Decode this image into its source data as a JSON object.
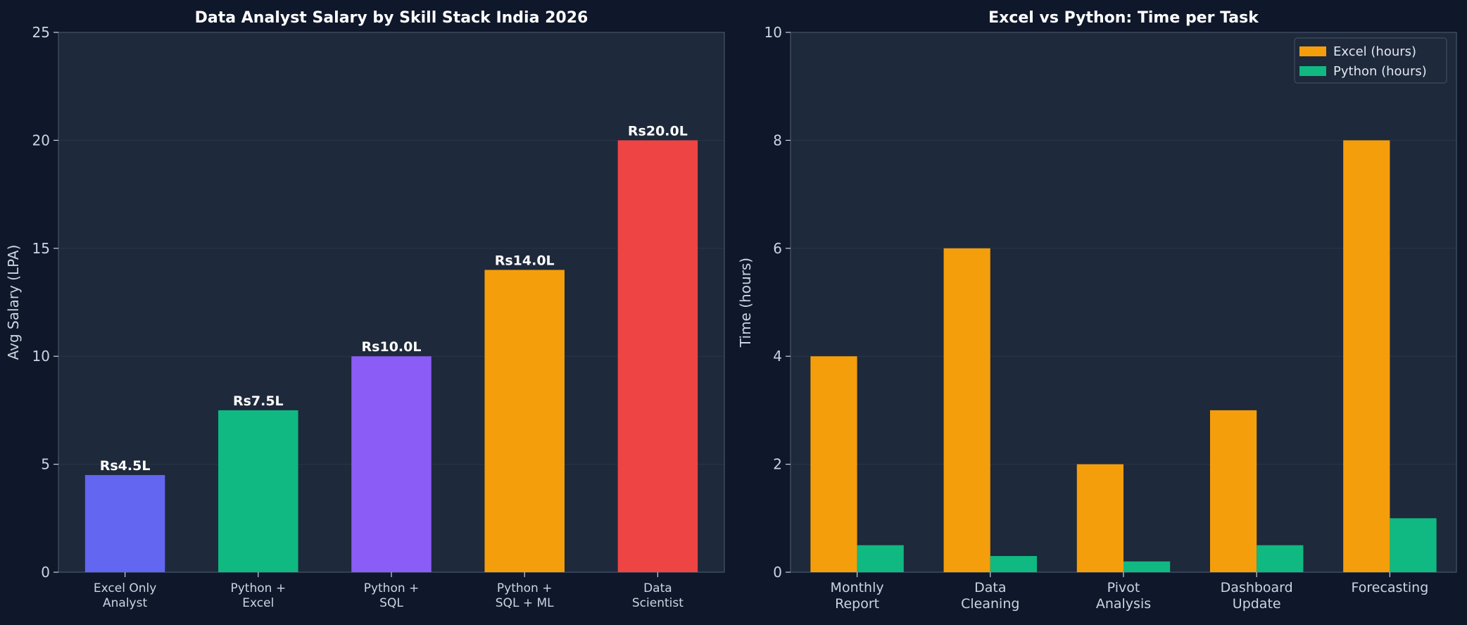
{
  "theme": {
    "figure_bg": "#0f172a",
    "axes_bg": "#1e293b",
    "grid": "#334155",
    "spine": "#475569",
    "tick_text": "#cbd5e1",
    "title_text": "#ffffff",
    "label_text": "#ffffff"
  },
  "chart_data": [
    {
      "type": "bar",
      "title": "Data Analyst Salary by Skill Stack India 2026",
      "xlabel": "",
      "ylabel": "Avg Salary (LPA)",
      "ylim": [
        0,
        25
      ],
      "yticks": [
        "0",
        "5",
        "10",
        "15",
        "20",
        "25"
      ],
      "ytick_values": [
        0,
        5,
        10,
        15,
        20,
        25
      ],
      "grid": true,
      "categories": [
        [
          "Excel Only",
          "Analyst"
        ],
        [
          "Python +",
          "Excel"
        ],
        [
          "Python +",
          "SQL"
        ],
        [
          "Python +",
          "SQL + ML"
        ],
        [
          "Data",
          "Scientist"
        ]
      ],
      "values": [
        4.5,
        7.5,
        10.0,
        14.0,
        20.0
      ],
      "data_labels": [
        "Rs4.5L",
        "Rs7.5L",
        "Rs10.0L",
        "Rs14.0L",
        "Rs20.0L"
      ],
      "colors": [
        "#6366f1",
        "#10b981",
        "#8b5cf6",
        "#f59e0b",
        "#ef4444"
      ]
    },
    {
      "type": "bar",
      "title": "Excel vs Python: Time per Task",
      "xlabel": "",
      "ylabel": "Time (hours)",
      "ylim": [
        0,
        10
      ],
      "yticks": [
        "0",
        "2",
        "4",
        "6",
        "8",
        "10"
      ],
      "ytick_values": [
        0,
        2,
        4,
        6,
        8,
        10
      ],
      "grid": true,
      "legend_position": "top-right",
      "categories": [
        [
          "Monthly",
          "Report"
        ],
        [
          "Data",
          "Cleaning"
        ],
        [
          "Pivot",
          "Analysis"
        ],
        [
          "Dashboard",
          "Update"
        ],
        [
          "Forecasting"
        ]
      ],
      "series": [
        {
          "name": "Excel (hours)",
          "color": "#f59e0b",
          "values": [
            4,
            6,
            2,
            3,
            8
          ]
        },
        {
          "name": "Python (hours)",
          "color": "#10b981",
          "values": [
            0.5,
            0.3,
            0.2,
            0.5,
            1.0
          ]
        }
      ]
    }
  ]
}
